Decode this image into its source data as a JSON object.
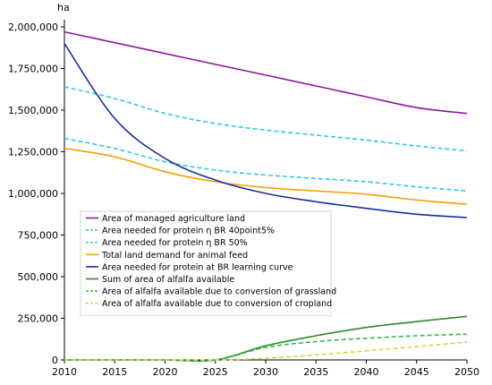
{
  "chart_data": {
    "type": "line",
    "ylabel": "ha",
    "x": [
      2010,
      2015,
      2020,
      2025,
      2030,
      2035,
      2040,
      2045,
      2050
    ],
    "xticks": [
      "2010",
      "2015",
      "2020",
      "2025",
      "2030",
      "2035",
      "2040",
      "2045",
      "2050"
    ],
    "yticks": [
      "0",
      "250,000",
      "500,000",
      "750,000",
      "1,000,000",
      "1,250,000",
      "1,500,000",
      "1,750,000",
      "2,000,000"
    ],
    "ylim": [
      0,
      2000000
    ],
    "xlim": [
      2010,
      2050
    ],
    "grid": false,
    "legend_position": "center-left",
    "series": [
      {
        "name": "Area of managed agriculture land",
        "color": "#8B1A9A",
        "dash": "solid",
        "values": [
          1970000,
          1905000,
          1840000,
          1775000,
          1710000,
          1645000,
          1580000,
          1515000,
          1480000
        ]
      },
      {
        "name": "Area needed for protein η BR 40point5%",
        "color": "#33C8E0",
        "dash": "dashed",
        "values": [
          1640000,
          1570000,
          1480000,
          1420000,
          1380000,
          1350000,
          1320000,
          1285000,
          1255000
        ]
      },
      {
        "name": "Area needed for protein η BR 50%",
        "color": "#33C8E0",
        "dash": "dashed",
        "values": [
          1330000,
          1270000,
          1190000,
          1140000,
          1110000,
          1090000,
          1070000,
          1040000,
          1015000
        ]
      },
      {
        "name": "Total land demand for animal feed",
        "color": "#F5A000",
        "dash": "solid",
        "values": [
          1270000,
          1220000,
          1130000,
          1070000,
          1035000,
          1015000,
          995000,
          960000,
          935000
        ]
      },
      {
        "name": "Area needed for protein at BR learning curve",
        "color": "#1A2E9E",
        "dash": "solid",
        "values": [
          1900000,
          1450000,
          1210000,
          1080000,
          1000000,
          950000,
          910000,
          875000,
          855000
        ]
      },
      {
        "name": "Sum of area of alfalfa available",
        "color": "#2A8A2A",
        "dash": "solid",
        "values": [
          0,
          0,
          0,
          0,
          85000,
          145000,
          195000,
          230000,
          262000
        ]
      },
      {
        "name": "Area of alfalfa available due to conversion of grassland",
        "color": "#3BB84A",
        "dash": "dashed",
        "values": [
          0,
          0,
          0,
          0,
          75000,
          110000,
          130000,
          145000,
          155000
        ]
      },
      {
        "name": "Area of alfalfa available due to conversion of cropland",
        "color": "#C8E040",
        "dash": "dashed",
        "values": [
          0,
          0,
          0,
          0,
          10000,
          30000,
          55000,
          80000,
          108000
        ]
      }
    ]
  }
}
